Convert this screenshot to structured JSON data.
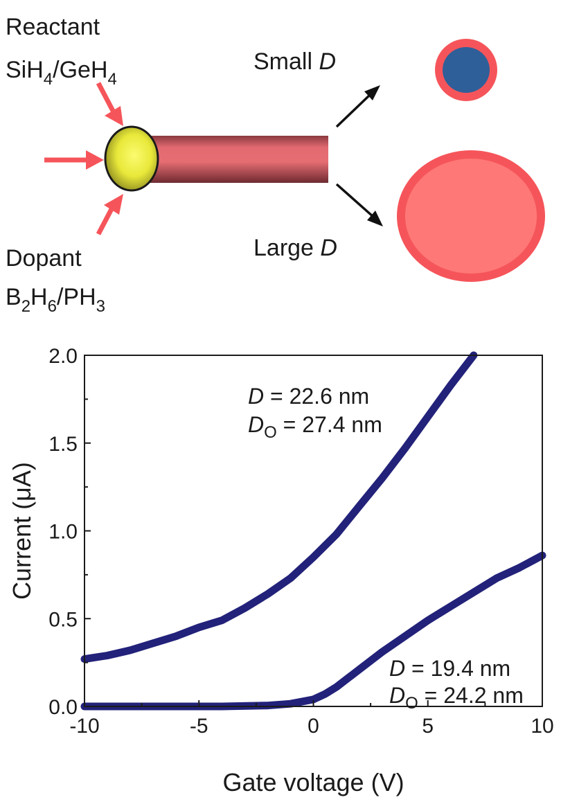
{
  "schematic": {
    "reactant_label": "Reactant",
    "reactant_species": [
      "SiH",
      "4",
      "/GeH",
      "4"
    ],
    "dopant_label": "Dopant",
    "dopant_species": [
      "B",
      "2",
      "H",
      "6",
      "/PH",
      "3"
    ],
    "small_label": [
      "Small ",
      "D"
    ],
    "large_label": [
      "Large ",
      "D"
    ],
    "colors": {
      "arrow": "#f5555a",
      "catalyst": "#f0f040",
      "wire": "#e46a70",
      "shell": "#f5555a",
      "core_small": "#2e5f99",
      "core_large": "#ff7878"
    }
  },
  "chart_data": {
    "type": "line",
    "xlabel": "Gate voltage (V)",
    "ylabel": "Current (μA)",
    "xlim": [
      -10,
      10
    ],
    "ylim": [
      0,
      2.0
    ],
    "xticks": [
      "-10",
      "-5",
      "0",
      "5",
      "10"
    ],
    "yticks": [
      "0.0",
      "0.5",
      "1.0",
      "1.5",
      "2.0"
    ],
    "line_color": "#22227a",
    "series": [
      {
        "annotation": [
          "D",
          " = 22.6 nm",
          "D",
          "O",
          " = 27.4 nm"
        ],
        "x": [
          -10,
          -9,
          -8,
          -7,
          -6,
          -5,
          -4,
          -3,
          -2,
          -1,
          0,
          1,
          2,
          3,
          4,
          5,
          6,
          7
        ],
        "y": [
          0.27,
          0.29,
          0.32,
          0.36,
          0.4,
          0.45,
          0.49,
          0.56,
          0.64,
          0.73,
          0.85,
          0.98,
          1.14,
          1.3,
          1.47,
          1.65,
          1.83,
          2.0
        ]
      },
      {
        "annotation": [
          "D",
          " = 19.4 nm",
          "D",
          "O",
          " = 24.2 nm"
        ],
        "x": [
          -10,
          -8,
          -6,
          -4,
          -2,
          -1,
          0,
          0.5,
          1,
          1.5,
          2,
          3,
          4,
          5,
          6,
          7,
          8,
          9,
          10
        ],
        "y": [
          0,
          0,
          0,
          0,
          0.005,
          0.015,
          0.04,
          0.07,
          0.11,
          0.16,
          0.21,
          0.31,
          0.4,
          0.49,
          0.57,
          0.65,
          0.73,
          0.79,
          0.86
        ]
      }
    ]
  }
}
